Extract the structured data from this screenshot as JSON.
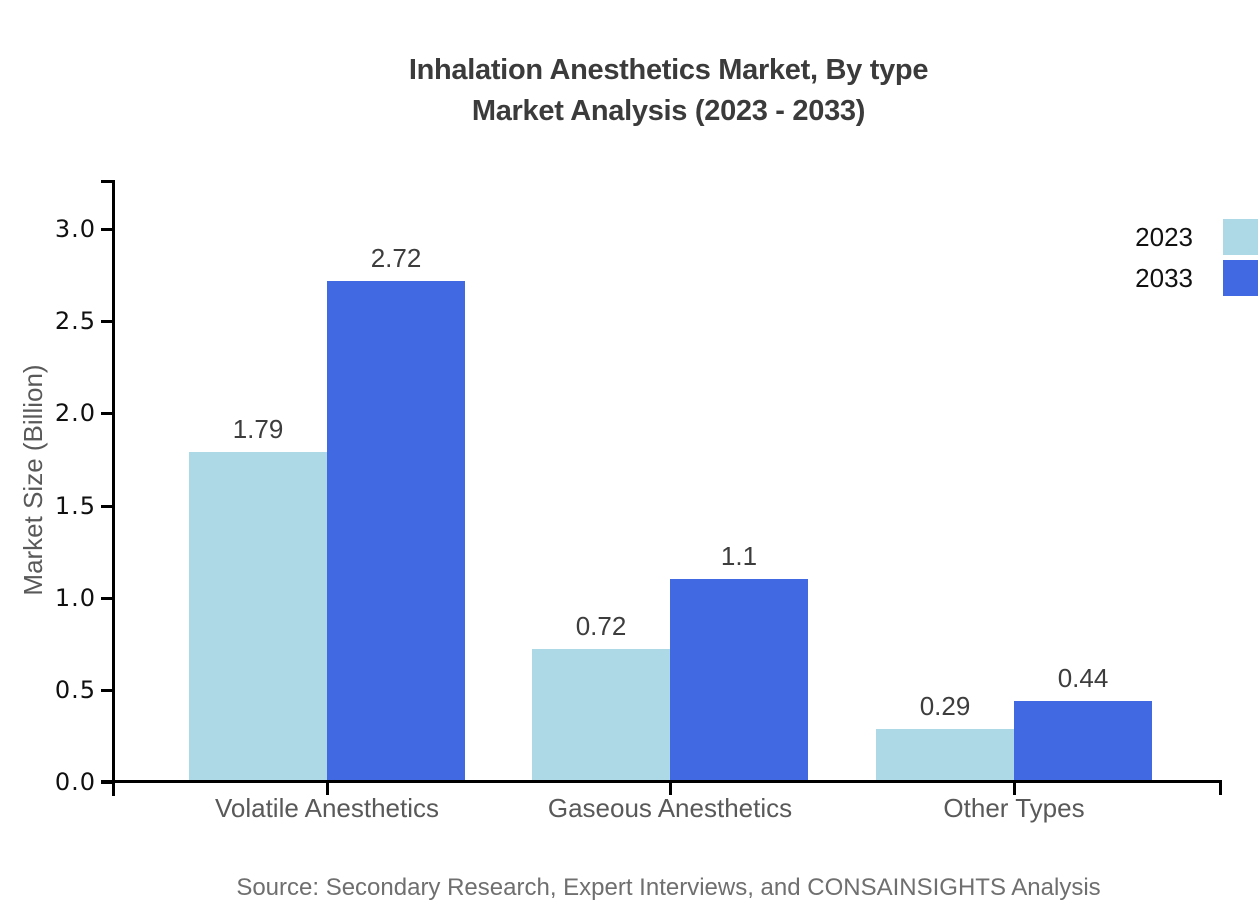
{
  "title": {
    "line1": "Inhalation Anesthetics Market, By type",
    "line2": "Market Analysis (2023 - 2033)"
  },
  "source": "Source: Secondary Research, Expert Interviews, and CONSAINSIGHTS Analysis",
  "chart_data": {
    "type": "bar",
    "title": "Inhalation Anesthetics Market, By type Market Analysis (2023 - 2033)",
    "categories": [
      "Volatile Anesthetics",
      "Gaseous Anesthetics",
      "Other Types"
    ],
    "series": [
      {
        "name": "2023",
        "color": "#add8e6",
        "values": [
          1.79,
          0.72,
          0.29
        ],
        "labels": [
          "1.79",
          "0.72",
          "0.29"
        ]
      },
      {
        "name": "2033",
        "color": "#4169e1",
        "values": [
          2.72,
          1.1,
          0.44
        ],
        "labels": [
          "2.72",
          "1.1",
          "0.44"
        ]
      }
    ],
    "xlabel": "",
    "ylabel": "Market Size (Billion)",
    "ylim": [
      0,
      3.27
    ],
    "yticks": [
      0.0,
      0.5,
      1.0,
      1.5,
      2.0,
      2.5,
      3.0
    ],
    "grid": false,
    "legend_position": "top-right",
    "axis_color": "#000000"
  }
}
